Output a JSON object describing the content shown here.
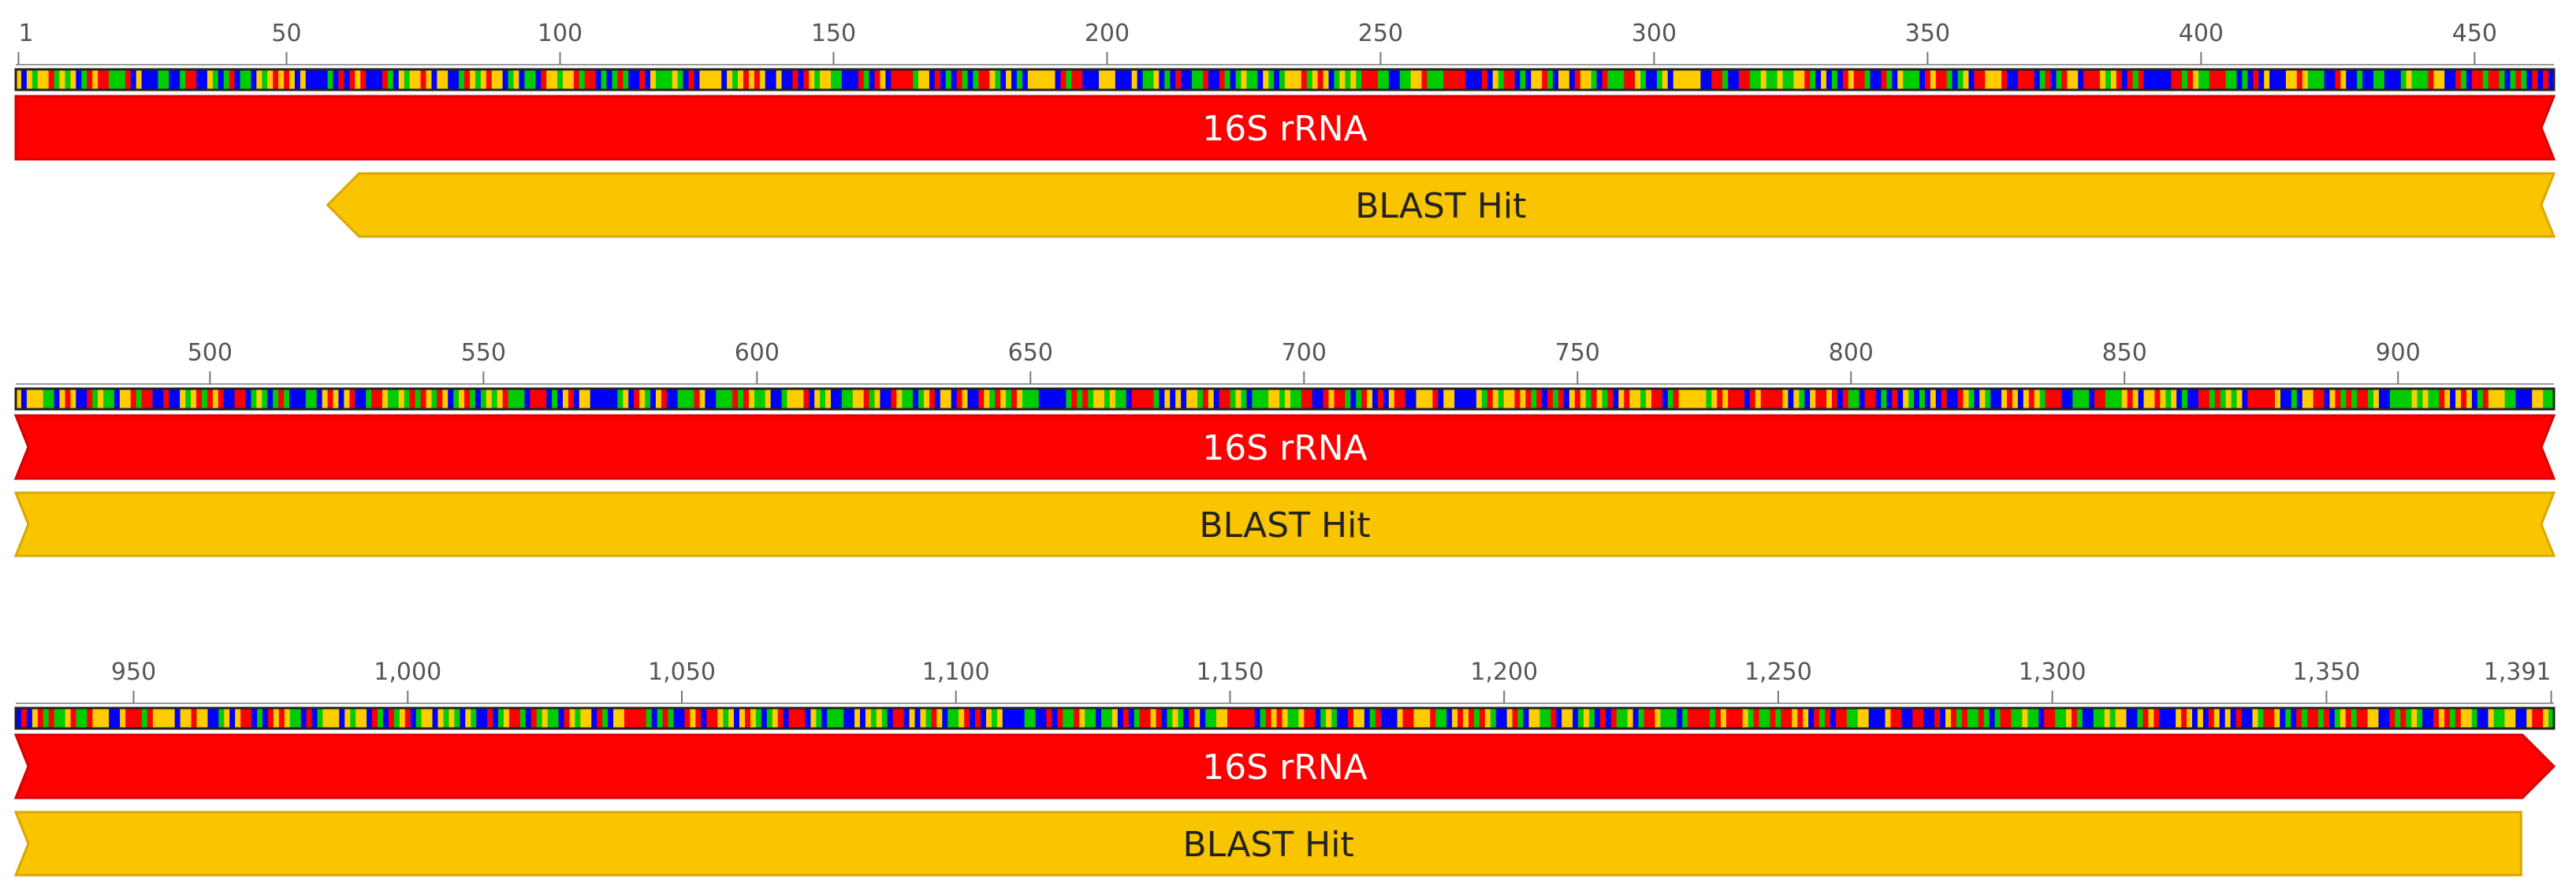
{
  "sequence": {
    "length": 1391,
    "base_colors": {
      "A": "#ff0000",
      "C": "#0000ff",
      "G": "#ffcc00",
      "T": "#00cc00"
    }
  },
  "ticks": [
    {
      "pos": 1,
      "label": "1"
    },
    {
      "pos": 50,
      "label": "50"
    },
    {
      "pos": 100,
      "label": "100"
    },
    {
      "pos": 150,
      "label": "150"
    },
    {
      "pos": 200,
      "label": "200"
    },
    {
      "pos": 250,
      "label": "250"
    },
    {
      "pos": 300,
      "label": "300"
    },
    {
      "pos": 350,
      "label": "350"
    },
    {
      "pos": 400,
      "label": "400"
    },
    {
      "pos": 450,
      "label": "450"
    },
    {
      "pos": 500,
      "label": "500"
    },
    {
      "pos": 550,
      "label": "550"
    },
    {
      "pos": 600,
      "label": "600"
    },
    {
      "pos": 650,
      "label": "650"
    },
    {
      "pos": 700,
      "label": "700"
    },
    {
      "pos": 750,
      "label": "750"
    },
    {
      "pos": 800,
      "label": "800"
    },
    {
      "pos": 850,
      "label": "850"
    },
    {
      "pos": 900,
      "label": "900"
    },
    {
      "pos": 950,
      "label": "950"
    },
    {
      "pos": 1000,
      "label": "1,000"
    },
    {
      "pos": 1050,
      "label": "1,050"
    },
    {
      "pos": 1100,
      "label": "1,100"
    },
    {
      "pos": 1150,
      "label": "1,150"
    },
    {
      "pos": 1200,
      "label": "1,200"
    },
    {
      "pos": 1250,
      "label": "1,250"
    },
    {
      "pos": 1300,
      "label": "1,300"
    },
    {
      "pos": 1350,
      "label": "1,350"
    },
    {
      "pos": 1391,
      "label": "1,391"
    }
  ],
  "rows": [
    {
      "start": 1,
      "end": 464
    },
    {
      "start": 465,
      "end": 928
    },
    {
      "start": 929,
      "end": 1391
    }
  ],
  "features": [
    {
      "id": "rrna",
      "label": "16S rRNA",
      "start": 1,
      "end": 1391,
      "direction": "forward",
      "color": "#ff0000",
      "border": "#d80000",
      "text_color": "#ffffff"
    },
    {
      "id": "blast",
      "label": "BLAST Hit",
      "start": 58,
      "end": 1385,
      "direction": "reverse",
      "color": "#f9c400",
      "border": "#d9a800",
      "text_color": "#222222"
    }
  ]
}
